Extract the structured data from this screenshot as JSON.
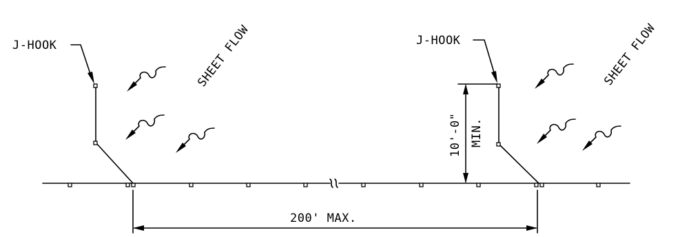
{
  "labels": {
    "jhook_left": "J-HOOK",
    "jhook_right": "J-HOOK",
    "sheet_flow_left": "SHEET FLOW",
    "sheet_flow_right": "SHEET FLOW",
    "min_spacing": "10'-0\"",
    "min_suffix": "MIN.",
    "max_spacing": "200' MAX."
  },
  "icons": {
    "flow_arrow": "sheet-flow-arrow-icon",
    "break_symbol": "break-line-icon"
  },
  "colors": {
    "ink": "#000000",
    "background": "#ffffff"
  }
}
